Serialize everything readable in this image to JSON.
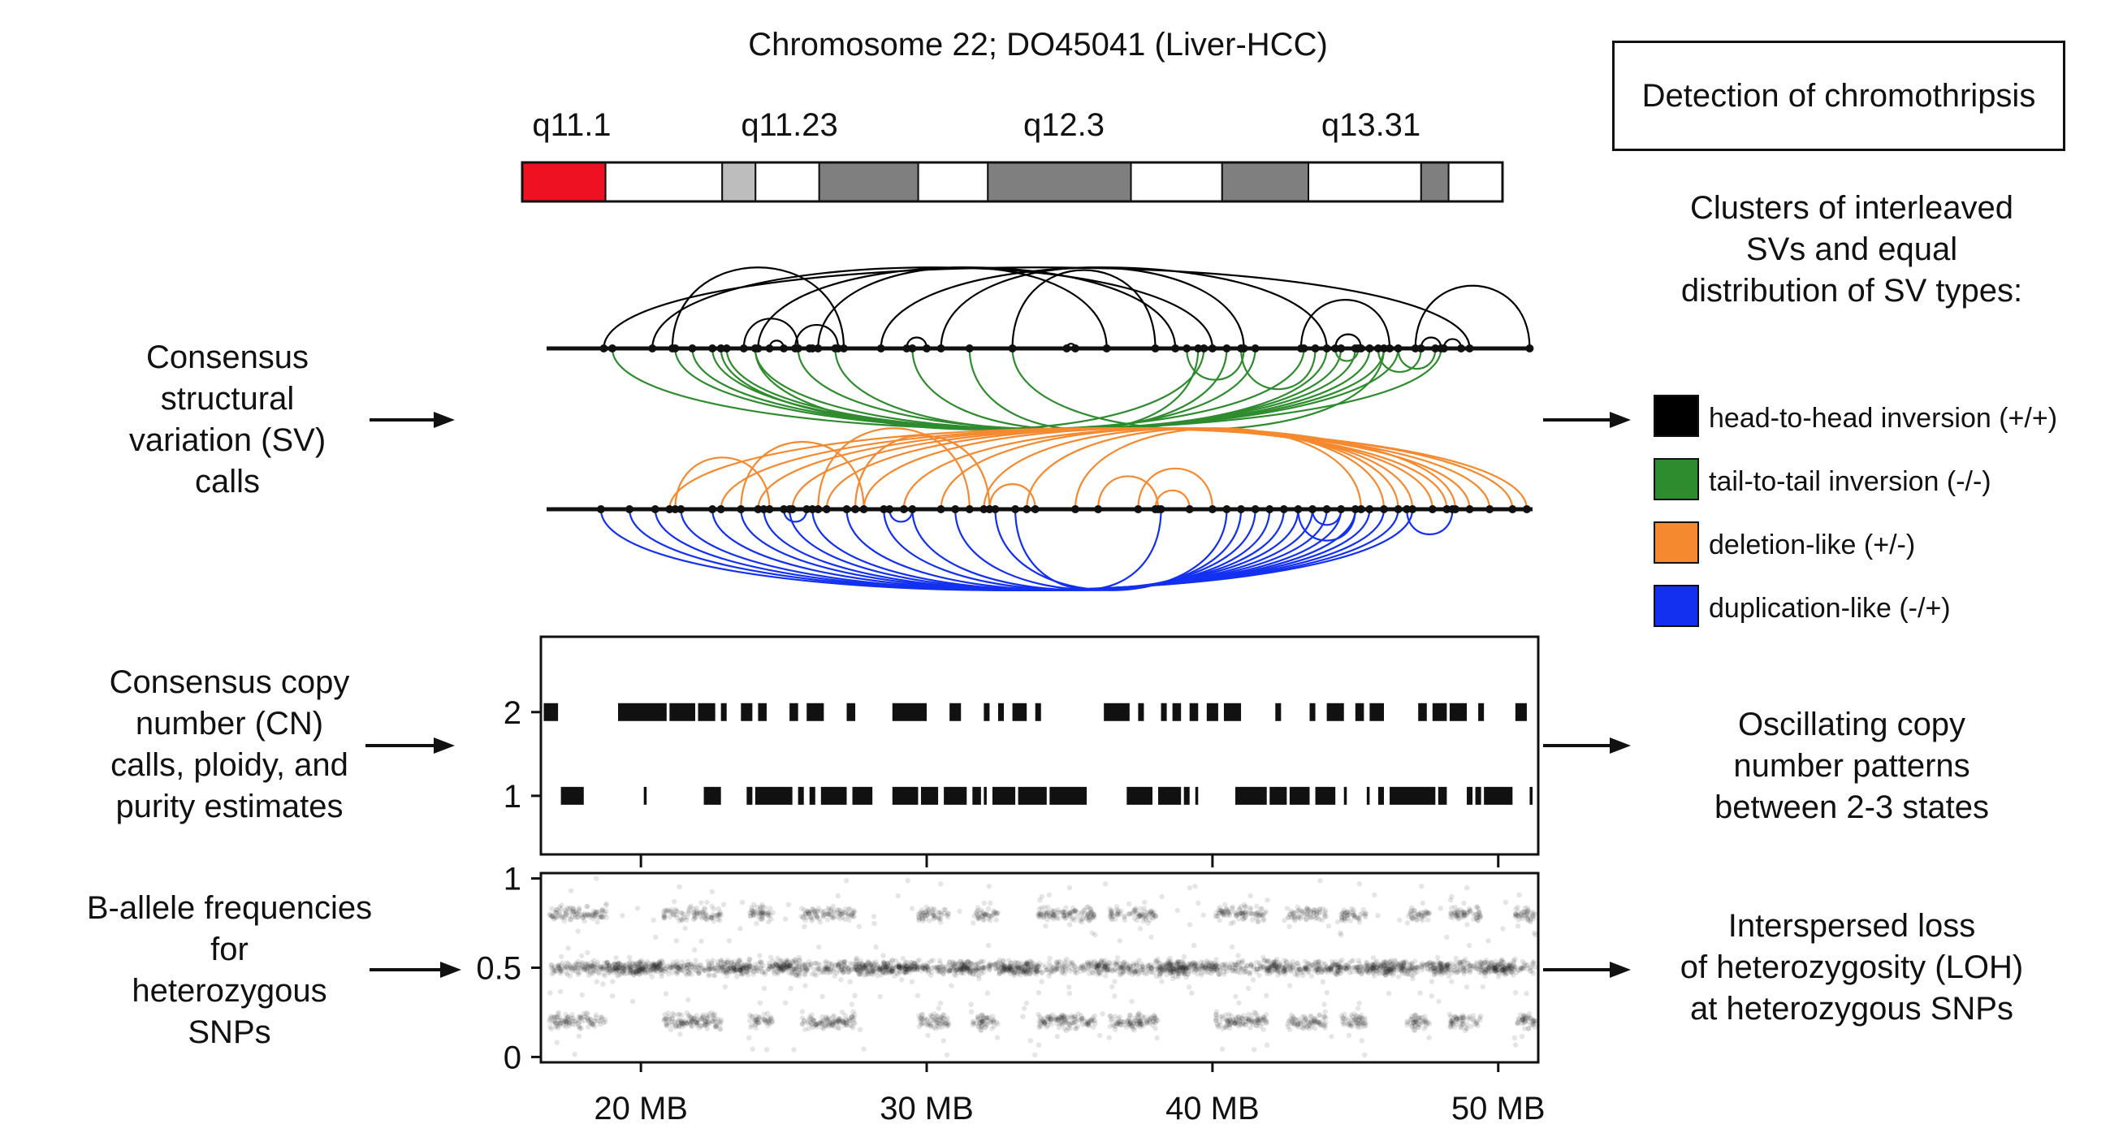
{
  "figure": {
    "title": "Chromosome 22; DO45041 (Liver-HCC)",
    "box_title": "Detection of chromothripsis",
    "colors": {
      "head_to_head": "#000000",
      "tail_to_tail": "#2e8b2e",
      "deletion": "#f5892f",
      "duplication": "#1330f0",
      "centromere": "#ee1122",
      "band_dark": "#7f7f7f",
      "band_light": "#bdbdbd"
    }
  },
  "ideogram": {
    "band_labels": [
      "q11.1",
      "q11.23",
      "q12.3",
      "q13.31"
    ],
    "bands": [
      {
        "w": 0.085,
        "kind": "centromere"
      },
      {
        "w": 0.119,
        "kind": "white"
      },
      {
        "w": 0.034,
        "kind": "light"
      },
      {
        "w": 0.065,
        "kind": "white"
      },
      {
        "w": 0.101,
        "kind": "dark"
      },
      {
        "w": 0.071,
        "kind": "white"
      },
      {
        "w": 0.146,
        "kind": "dark"
      },
      {
        "w": 0.093,
        "kind": "white"
      },
      {
        "w": 0.088,
        "kind": "dark"
      },
      {
        "w": 0.115,
        "kind": "white"
      },
      {
        "w": 0.028,
        "kind": "dark"
      },
      {
        "w": 0.055,
        "kind": "white"
      }
    ]
  },
  "left_labels": {
    "sv": [
      "Consensus",
      "structural",
      "variation (SV)",
      "calls"
    ],
    "cn": [
      "Consensus copy",
      "number (CN)",
      "calls, ploidy, and",
      "purity estimates"
    ],
    "baf": [
      "B-allele frequencies",
      "for",
      "heterozygous",
      "SNPs"
    ]
  },
  "right_labels": {
    "sv": [
      "Clusters of interleaved",
      "SVs and equal",
      "distribution of SV types:"
    ],
    "cn": [
      "Oscillating copy",
      "number patterns",
      "between 2-3 states"
    ],
    "baf": [
      "Interspersed loss",
      "of heterozygosity (LOH)",
      "at heterozygous SNPs"
    ]
  },
  "legend": [
    {
      "label": "head-to-head inversion (+/+)",
      "color": "#000000"
    },
    {
      "label": "tail-to-tail inversion (-/-)",
      "color": "#2e8b2e"
    },
    {
      "label": "deletion-like (+/-)",
      "color": "#f5892f"
    },
    {
      "label": "duplication-like (-/+)",
      "color": "#1330f0"
    }
  ],
  "chart_data": [
    {
      "type": "arc",
      "panel": "inversions",
      "x_unit": "MB",
      "xlim": [
        16.5,
        51.4
      ],
      "head_to_head": [
        [
          21.1,
          27.1
        ],
        [
          23.6,
          25.5
        ],
        [
          24.5,
          25.0
        ],
        [
          25.9,
          26.0
        ],
        [
          25.4,
          26.9
        ],
        [
          29.3,
          30.0
        ],
        [
          33.0,
          38.0
        ],
        [
          34.9,
          35.2
        ],
        [
          43.1,
          46.2
        ],
        [
          44.3,
          45.2
        ],
        [
          47.1,
          51.1
        ],
        [
          47.3,
          48.0
        ],
        [
          48.1,
          48.7
        ],
        [
          18.7,
          49.0
        ],
        [
          20.4,
          40.0
        ],
        [
          24.1,
          38.7
        ],
        [
          26.2,
          36.3
        ],
        [
          28.4,
          44.0
        ],
        [
          30.5,
          41.1
        ]
      ],
      "tail_to_tail": [
        [
          19.0,
          48.0
        ],
        [
          21.2,
          46.5
        ],
        [
          21.8,
          46.0
        ],
        [
          22.5,
          45.5
        ],
        [
          23.0,
          45.0
        ],
        [
          24.0,
          44.5
        ],
        [
          25.5,
          44.0
        ],
        [
          26.8,
          41.5
        ],
        [
          29.5,
          40.5
        ],
        [
          31.5,
          39.5
        ],
        [
          33.0,
          46.0
        ],
        [
          22.8,
          43.2
        ],
        [
          24.0,
          39.7
        ],
        [
          41.0,
          43.6
        ],
        [
          39.1,
          41.1
        ],
        [
          44.3,
          45.1
        ],
        [
          45.8,
          47.3
        ],
        [
          46.5,
          47.8
        ]
      ]
    },
    {
      "type": "arc",
      "panel": "deletion_duplication",
      "x_unit": "MB",
      "xlim": [
        16.5,
        51.4
      ],
      "deletion": [
        [
          21.2,
          24.5
        ],
        [
          23.5,
          27.8
        ],
        [
          26.2,
          31.5
        ],
        [
          21.0,
          51.0
        ],
        [
          22.8,
          50.5
        ],
        [
          24.1,
          49.7
        ],
        [
          25.3,
          49.0
        ],
        [
          26.5,
          48.2
        ],
        [
          27.8,
          47.7
        ],
        [
          29.2,
          48.5
        ],
        [
          30.5,
          47.0
        ],
        [
          32.0,
          46.5
        ],
        [
          33.5,
          46.0
        ],
        [
          35.2,
          45.2
        ],
        [
          37.4,
          40.0
        ],
        [
          38.0,
          39.2
        ],
        [
          36.0,
          38.1
        ],
        [
          27.5,
          32.2
        ],
        [
          32.2,
          33.8
        ]
      ],
      "duplication": [
        [
          18.6,
          47.0
        ],
        [
          19.6,
          46.5
        ],
        [
          20.5,
          46.0
        ],
        [
          21.4,
          45.5
        ],
        [
          22.5,
          45.0
        ],
        [
          23.5,
          44.5
        ],
        [
          24.3,
          44.0
        ],
        [
          25.2,
          43.5
        ],
        [
          26.0,
          43.0
        ],
        [
          27.2,
          42.5
        ],
        [
          28.5,
          42.0
        ],
        [
          29.5,
          41.5
        ],
        [
          31.0,
          41.0
        ],
        [
          32.4,
          40.5
        ],
        [
          33.1,
          38.2
        ],
        [
          43.0,
          45.0
        ],
        [
          43.5,
          44.5
        ],
        [
          25.0,
          25.8
        ],
        [
          28.7,
          29.5
        ],
        [
          46.8,
          48.4
        ]
      ]
    },
    {
      "type": "segments",
      "panel": "copy_number",
      "x_unit": "MB",
      "xlim": [
        16.5,
        51.4
      ],
      "ylim": [
        0.3,
        2.9
      ],
      "yticks": [
        1,
        2
      ],
      "cn2_segments": [
        [
          16.6,
          17.1
        ],
        [
          19.2,
          20.9
        ],
        [
          21.0,
          21.9
        ],
        [
          22.0,
          22.6
        ],
        [
          22.8,
          23.0
        ],
        [
          23.5,
          23.9
        ],
        [
          24.1,
          24.4
        ],
        [
          25.2,
          25.5
        ],
        [
          25.8,
          26.4
        ],
        [
          27.2,
          27.5
        ],
        [
          28.8,
          30.0
        ],
        [
          30.8,
          31.2
        ],
        [
          32.0,
          32.2
        ],
        [
          32.5,
          32.7
        ],
        [
          33.0,
          33.5
        ],
        [
          33.8,
          34.0
        ],
        [
          36.2,
          37.1
        ],
        [
          37.4,
          37.6
        ],
        [
          38.2,
          38.4
        ],
        [
          38.6,
          38.9
        ],
        [
          39.2,
          39.5
        ],
        [
          39.8,
          40.2
        ],
        [
          40.4,
          41.0
        ],
        [
          42.2,
          42.4
        ],
        [
          43.4,
          43.6
        ],
        [
          44.0,
          44.6
        ],
        [
          45.0,
          45.3
        ],
        [
          45.5,
          46.0
        ],
        [
          47.2,
          47.5
        ],
        [
          47.7,
          48.2
        ],
        [
          48.3,
          48.9
        ],
        [
          49.3,
          49.5
        ],
        [
          50.6,
          51.0
        ]
      ],
      "cn1_segments": [
        [
          17.2,
          18.0
        ],
        [
          20.1,
          20.2
        ],
        [
          22.2,
          22.8
        ],
        [
          23.7,
          23.9
        ],
        [
          24.0,
          25.3
        ],
        [
          25.5,
          25.7
        ],
        [
          25.9,
          26.1
        ],
        [
          26.3,
          27.2
        ],
        [
          27.4,
          28.1
        ],
        [
          28.8,
          29.7
        ],
        [
          29.8,
          30.4
        ],
        [
          30.6,
          31.4
        ],
        [
          31.6,
          31.9
        ],
        [
          32.0,
          32.1
        ],
        [
          32.3,
          33.1
        ],
        [
          33.2,
          34.2
        ],
        [
          34.3,
          35.6
        ],
        [
          37.0,
          37.9
        ],
        [
          38.1,
          38.9
        ],
        [
          39.0,
          39.2
        ],
        [
          39.4,
          39.5
        ],
        [
          40.8,
          41.9
        ],
        [
          42.0,
          42.6
        ],
        [
          42.7,
          43.4
        ],
        [
          43.6,
          44.3
        ],
        [
          44.6,
          44.7
        ],
        [
          45.4,
          45.5
        ],
        [
          45.8,
          46.0
        ],
        [
          46.2,
          47.8
        ],
        [
          47.9,
          48.2
        ],
        [
          48.9,
          49.1
        ],
        [
          49.2,
          49.4
        ],
        [
          49.5,
          50.5
        ],
        [
          51.1,
          51.2
        ]
      ]
    },
    {
      "type": "scatter",
      "panel": "b_allele_frequency",
      "x_unit": "MB",
      "xlim": [
        16.5,
        51.4
      ],
      "ylim": [
        -0.03,
        1.03
      ],
      "yticks": [
        0,
        0.5,
        1
      ],
      "xticks": [
        20,
        30,
        40,
        50
      ],
      "xtick_labels": [
        "20 MB",
        "30 MB",
        "40 MB",
        "50 MB"
      ],
      "heterozygous_regions": [
        [
          16.8,
          18.8
        ],
        [
          20.8,
          22.9
        ],
        [
          23.8,
          24.6
        ],
        [
          25.6,
          27.5
        ],
        [
          29.7,
          30.8
        ],
        [
          31.6,
          32.5
        ],
        [
          33.9,
          35.9
        ],
        [
          36.4,
          38.1
        ],
        [
          40.1,
          41.9
        ],
        [
          42.6,
          44.0
        ],
        [
          44.5,
          45.4
        ],
        [
          46.8,
          47.6
        ],
        [
          48.3,
          49.4
        ],
        [
          50.6,
          51.3
        ]
      ],
      "loh_regions": [
        [
          18.8,
          20.8
        ],
        [
          22.9,
          23.8
        ],
        [
          24.6,
          25.6
        ],
        [
          27.5,
          29.7
        ],
        [
          30.8,
          31.6
        ],
        [
          32.5,
          33.9
        ],
        [
          35.9,
          36.4
        ],
        [
          38.1,
          40.1
        ],
        [
          41.9,
          42.6
        ],
        [
          44.0,
          44.5
        ],
        [
          45.4,
          46.8
        ],
        [
          47.6,
          48.3
        ],
        [
          49.4,
          50.6
        ]
      ],
      "heterozygous_baf_levels": [
        0.2,
        0.5,
        0.8
      ],
      "loh_baf_levels": [
        0.5
      ]
    }
  ]
}
